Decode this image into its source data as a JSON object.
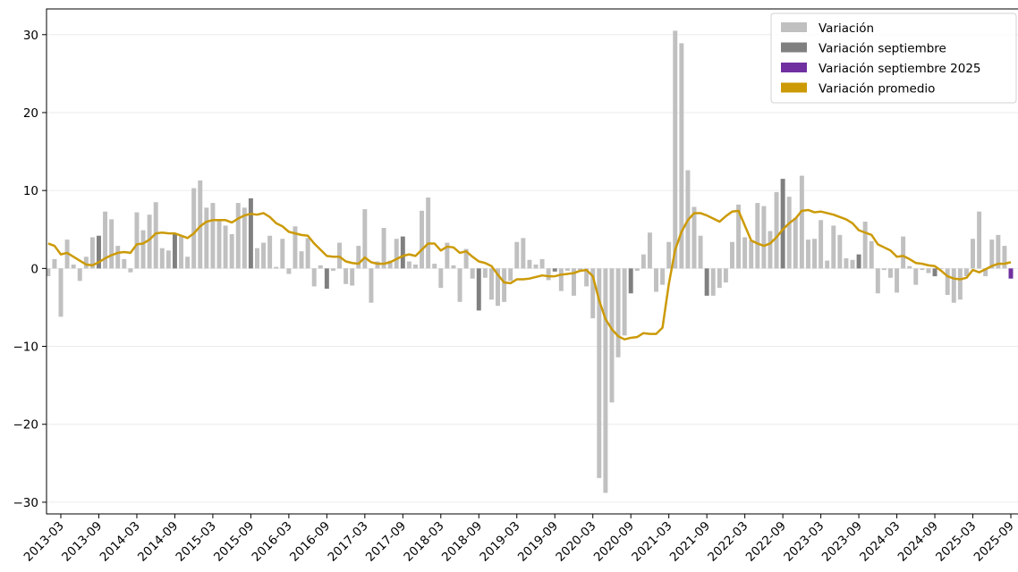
{
  "chart_data": {
    "type": "bar",
    "categories": [
      null,
      null,
      "2013-03",
      null,
      null,
      null,
      null,
      null,
      "2013-09",
      null,
      null,
      null,
      null,
      null,
      "2014-03",
      null,
      null,
      null,
      null,
      null,
      "2014-09",
      null,
      null,
      null,
      null,
      null,
      "2015-03",
      null,
      null,
      null,
      null,
      null,
      "2015-09",
      null,
      null,
      null,
      null,
      null,
      "2016-03",
      null,
      null,
      null,
      null,
      null,
      "2016-09",
      null,
      null,
      null,
      null,
      null,
      "2017-03",
      null,
      null,
      null,
      null,
      null,
      "2017-09",
      null,
      null,
      null,
      null,
      null,
      "2018-03",
      null,
      null,
      null,
      null,
      null,
      "2018-09",
      null,
      null,
      null,
      null,
      null,
      "2019-03",
      null,
      null,
      null,
      null,
      null,
      "2019-09",
      null,
      null,
      null,
      null,
      null,
      "2020-03",
      null,
      null,
      null,
      null,
      null,
      "2020-09",
      null,
      null,
      null,
      null,
      null,
      "2021-03",
      null,
      null,
      null,
      null,
      null,
      "2021-09",
      null,
      null,
      null,
      null,
      null,
      "2022-03",
      null,
      null,
      null,
      null,
      null,
      "2022-09",
      null,
      null,
      null,
      null,
      null,
      "2023-03",
      null,
      null,
      null,
      null,
      null,
      "2023-09",
      null,
      null,
      null,
      null,
      null,
      "2024-03",
      null,
      null,
      null,
      null,
      null,
      "2024-09",
      null,
      null,
      null,
      null,
      null,
      "2025-03",
      null,
      null,
      null,
      null,
      null,
      "2025-09"
    ],
    "series": [
      {
        "name": "Variación",
        "color": "#c0c0c0",
        "values": [
          -1.0,
          1.2,
          -6.2,
          3.7,
          0.5,
          -1.6,
          1.5,
          4.0,
          null,
          7.3,
          6.3,
          2.9,
          1.2,
          -0.5,
          7.2,
          4.9,
          6.9,
          8.5,
          2.6,
          2.3,
          null,
          4.2,
          1.5,
          10.3,
          11.3,
          7.8,
          8.4,
          6.1,
          5.5,
          4.4,
          8.4,
          7.8,
          null,
          2.6,
          3.3,
          4.2,
          0.2,
          3.8,
          -0.7,
          5.4,
          2.2,
          3.9,
          -2.3,
          0.4,
          null,
          -0.3,
          3.3,
          -2.0,
          -2.2,
          2.9,
          7.6,
          -4.4,
          0.9,
          5.2,
          1.0,
          3.8,
          null,
          0.9,
          0.5,
          7.4,
          9.1,
          0.6,
          -2.5,
          3.3,
          0.4,
          -4.3,
          2.5,
          -1.3,
          null,
          -1.2,
          -4.0,
          -4.8,
          -4.3,
          -1.6,
          3.4,
          3.9,
          1.1,
          0.5,
          1.2,
          -1.5,
          null,
          -2.9,
          -0.3,
          -3.5,
          -0.2,
          -2.3,
          -6.4,
          -26.9,
          -28.8,
          -17.2,
          -11.4,
          -8.6,
          null,
          -0.3,
          1.8,
          4.6,
          -3.0,
          -2.1,
          3.4,
          30.5,
          28.9,
          12.6,
          7.9,
          4.2,
          null,
          -3.5,
          -2.5,
          -1.8,
          3.4,
          8.2,
          4.0,
          3.6,
          8.4,
          8.0,
          4.8,
          9.8,
          null,
          9.2,
          6.5,
          11.9,
          3.7,
          3.8,
          6.2,
          1.0,
          5.5,
          4.3,
          1.3,
          1.1,
          null,
          6.0,
          3.5,
          -3.2,
          -0.2,
          -1.2,
          -3.1,
          4.1,
          0.3,
          -2.1,
          -0.2,
          -0.6,
          null,
          -0.1,
          -3.4,
          -4.4,
          -4.0,
          -1.0,
          3.8,
          7.3,
          -1.0,
          3.7,
          4.3,
          2.9,
          null
        ]
      },
      {
        "name": "Variación septiembre",
        "color": "#808080",
        "values": [
          null,
          null,
          null,
          null,
          null,
          null,
          null,
          null,
          4.2,
          null,
          null,
          null,
          null,
          null,
          null,
          null,
          null,
          null,
          null,
          null,
          4.5,
          null,
          null,
          null,
          null,
          null,
          null,
          null,
          null,
          null,
          null,
          null,
          9.0,
          null,
          null,
          null,
          null,
          null,
          null,
          null,
          null,
          null,
          null,
          null,
          -2.6,
          null,
          null,
          null,
          null,
          null,
          null,
          null,
          null,
          null,
          null,
          null,
          4.1,
          null,
          null,
          null,
          null,
          null,
          null,
          null,
          null,
          null,
          null,
          null,
          -5.4,
          null,
          null,
          null,
          null,
          null,
          null,
          null,
          null,
          null,
          null,
          null,
          -0.4,
          null,
          null,
          null,
          null,
          null,
          null,
          null,
          null,
          null,
          null,
          null,
          -3.2,
          null,
          null,
          null,
          null,
          null,
          null,
          null,
          null,
          null,
          null,
          null,
          -3.5,
          null,
          null,
          null,
          null,
          null,
          null,
          null,
          null,
          null,
          null,
          null,
          11.5,
          null,
          null,
          null,
          null,
          null,
          null,
          null,
          null,
          null,
          null,
          null,
          1.8,
          null,
          null,
          null,
          null,
          null,
          null,
          null,
          null,
          null,
          null,
          null,
          -1.0,
          null,
          null,
          null,
          null,
          null,
          null,
          null,
          null,
          null,
          null,
          null,
          null
        ]
      },
      {
        "name": "Variación septiembre 2025",
        "color": "#7030a0",
        "values": [
          null,
          null,
          null,
          null,
          null,
          null,
          null,
          null,
          null,
          null,
          null,
          null,
          null,
          null,
          null,
          null,
          null,
          null,
          null,
          null,
          null,
          null,
          null,
          null,
          null,
          null,
          null,
          null,
          null,
          null,
          null,
          null,
          null,
          null,
          null,
          null,
          null,
          null,
          null,
          null,
          null,
          null,
          null,
          null,
          null,
          null,
          null,
          null,
          null,
          null,
          null,
          null,
          null,
          null,
          null,
          null,
          null,
          null,
          null,
          null,
          null,
          null,
          null,
          null,
          null,
          null,
          null,
          null,
          null,
          null,
          null,
          null,
          null,
          null,
          null,
          null,
          null,
          null,
          null,
          null,
          null,
          null,
          null,
          null,
          null,
          null,
          null,
          null,
          null,
          null,
          null,
          null,
          null,
          null,
          null,
          null,
          null,
          null,
          null,
          null,
          null,
          null,
          null,
          null,
          null,
          null,
          null,
          null,
          null,
          null,
          null,
          null,
          null,
          null,
          null,
          null,
          null,
          null,
          null,
          null,
          null,
          null,
          null,
          null,
          null,
          null,
          null,
          null,
          null,
          null,
          null,
          null,
          null,
          null,
          null,
          null,
          null,
          null,
          null,
          null,
          null,
          null,
          null,
          null,
          null,
          null,
          null,
          null,
          null,
          null,
          null,
          null,
          -1.3
        ]
      },
      {
        "name": "Variación promedio",
        "color": "#cc9a06",
        "type": "line",
        "values": [
          3.2,
          2.9,
          1.8,
          2.0,
          1.5,
          1.0,
          0.5,
          0.4,
          0.8,
          1.3,
          1.7,
          2.0,
          2.1,
          2.0,
          3.1,
          3.2,
          3.7,
          4.5,
          4.6,
          4.5,
          4.5,
          4.2,
          3.9,
          4.5,
          5.4,
          6.0,
          6.2,
          6.2,
          6.2,
          5.9,
          6.4,
          6.8,
          7.0,
          6.9,
          7.1,
          6.6,
          5.8,
          5.4,
          4.7,
          4.5,
          4.3,
          4.2,
          3.2,
          2.4,
          1.6,
          1.5,
          1.5,
          0.9,
          0.7,
          0.6,
          1.4,
          0.8,
          0.6,
          0.6,
          0.8,
          1.2,
          1.6,
          1.8,
          1.6,
          2.4,
          3.2,
          3.2,
          2.3,
          2.8,
          2.7,
          2.0,
          2.2,
          1.5,
          0.9,
          0.7,
          0.3,
          -0.8,
          -1.8,
          -1.9,
          -1.4,
          -1.4,
          -1.3,
          -1.1,
          -0.9,
          -1.0,
          -1.0,
          -0.8,
          -0.7,
          -0.6,
          -0.3,
          -0.2,
          -1.0,
          -4.1,
          -6.5,
          -7.8,
          -8.7,
          -9.1,
          -8.9,
          -8.8,
          -8.3,
          -8.4,
          -8.4,
          -7.6,
          -2.0,
          2.4,
          4.7,
          6.2,
          7.1,
          7.1,
          6.8,
          6.4,
          6.0,
          6.7,
          7.3,
          7.4,
          5.5,
          3.6,
          3.2,
          2.9,
          3.2,
          4.0,
          5.0,
          5.8,
          6.4,
          7.4,
          7.5,
          7.2,
          7.3,
          7.1,
          6.9,
          6.6,
          6.3,
          5.8,
          4.9,
          4.6,
          4.3,
          3.1,
          2.7,
          2.3,
          1.5,
          1.6,
          1.2,
          0.7,
          0.6,
          0.4,
          0.3,
          -0.3,
          -1.0,
          -1.3,
          -1.4,
          -1.2,
          -0.2,
          -0.5,
          -0.1,
          0.3,
          0.6,
          0.6,
          0.8
        ]
      }
    ],
    "ylim": [
      -31.5,
      33.3
    ],
    "yticks": [
      {
        "value": -30,
        "label": "−30"
      },
      {
        "value": -20,
        "label": "−20"
      },
      {
        "value": -10,
        "label": "−10"
      },
      0,
      10,
      20,
      30
    ],
    "grid": true,
    "legend": "upper right"
  }
}
